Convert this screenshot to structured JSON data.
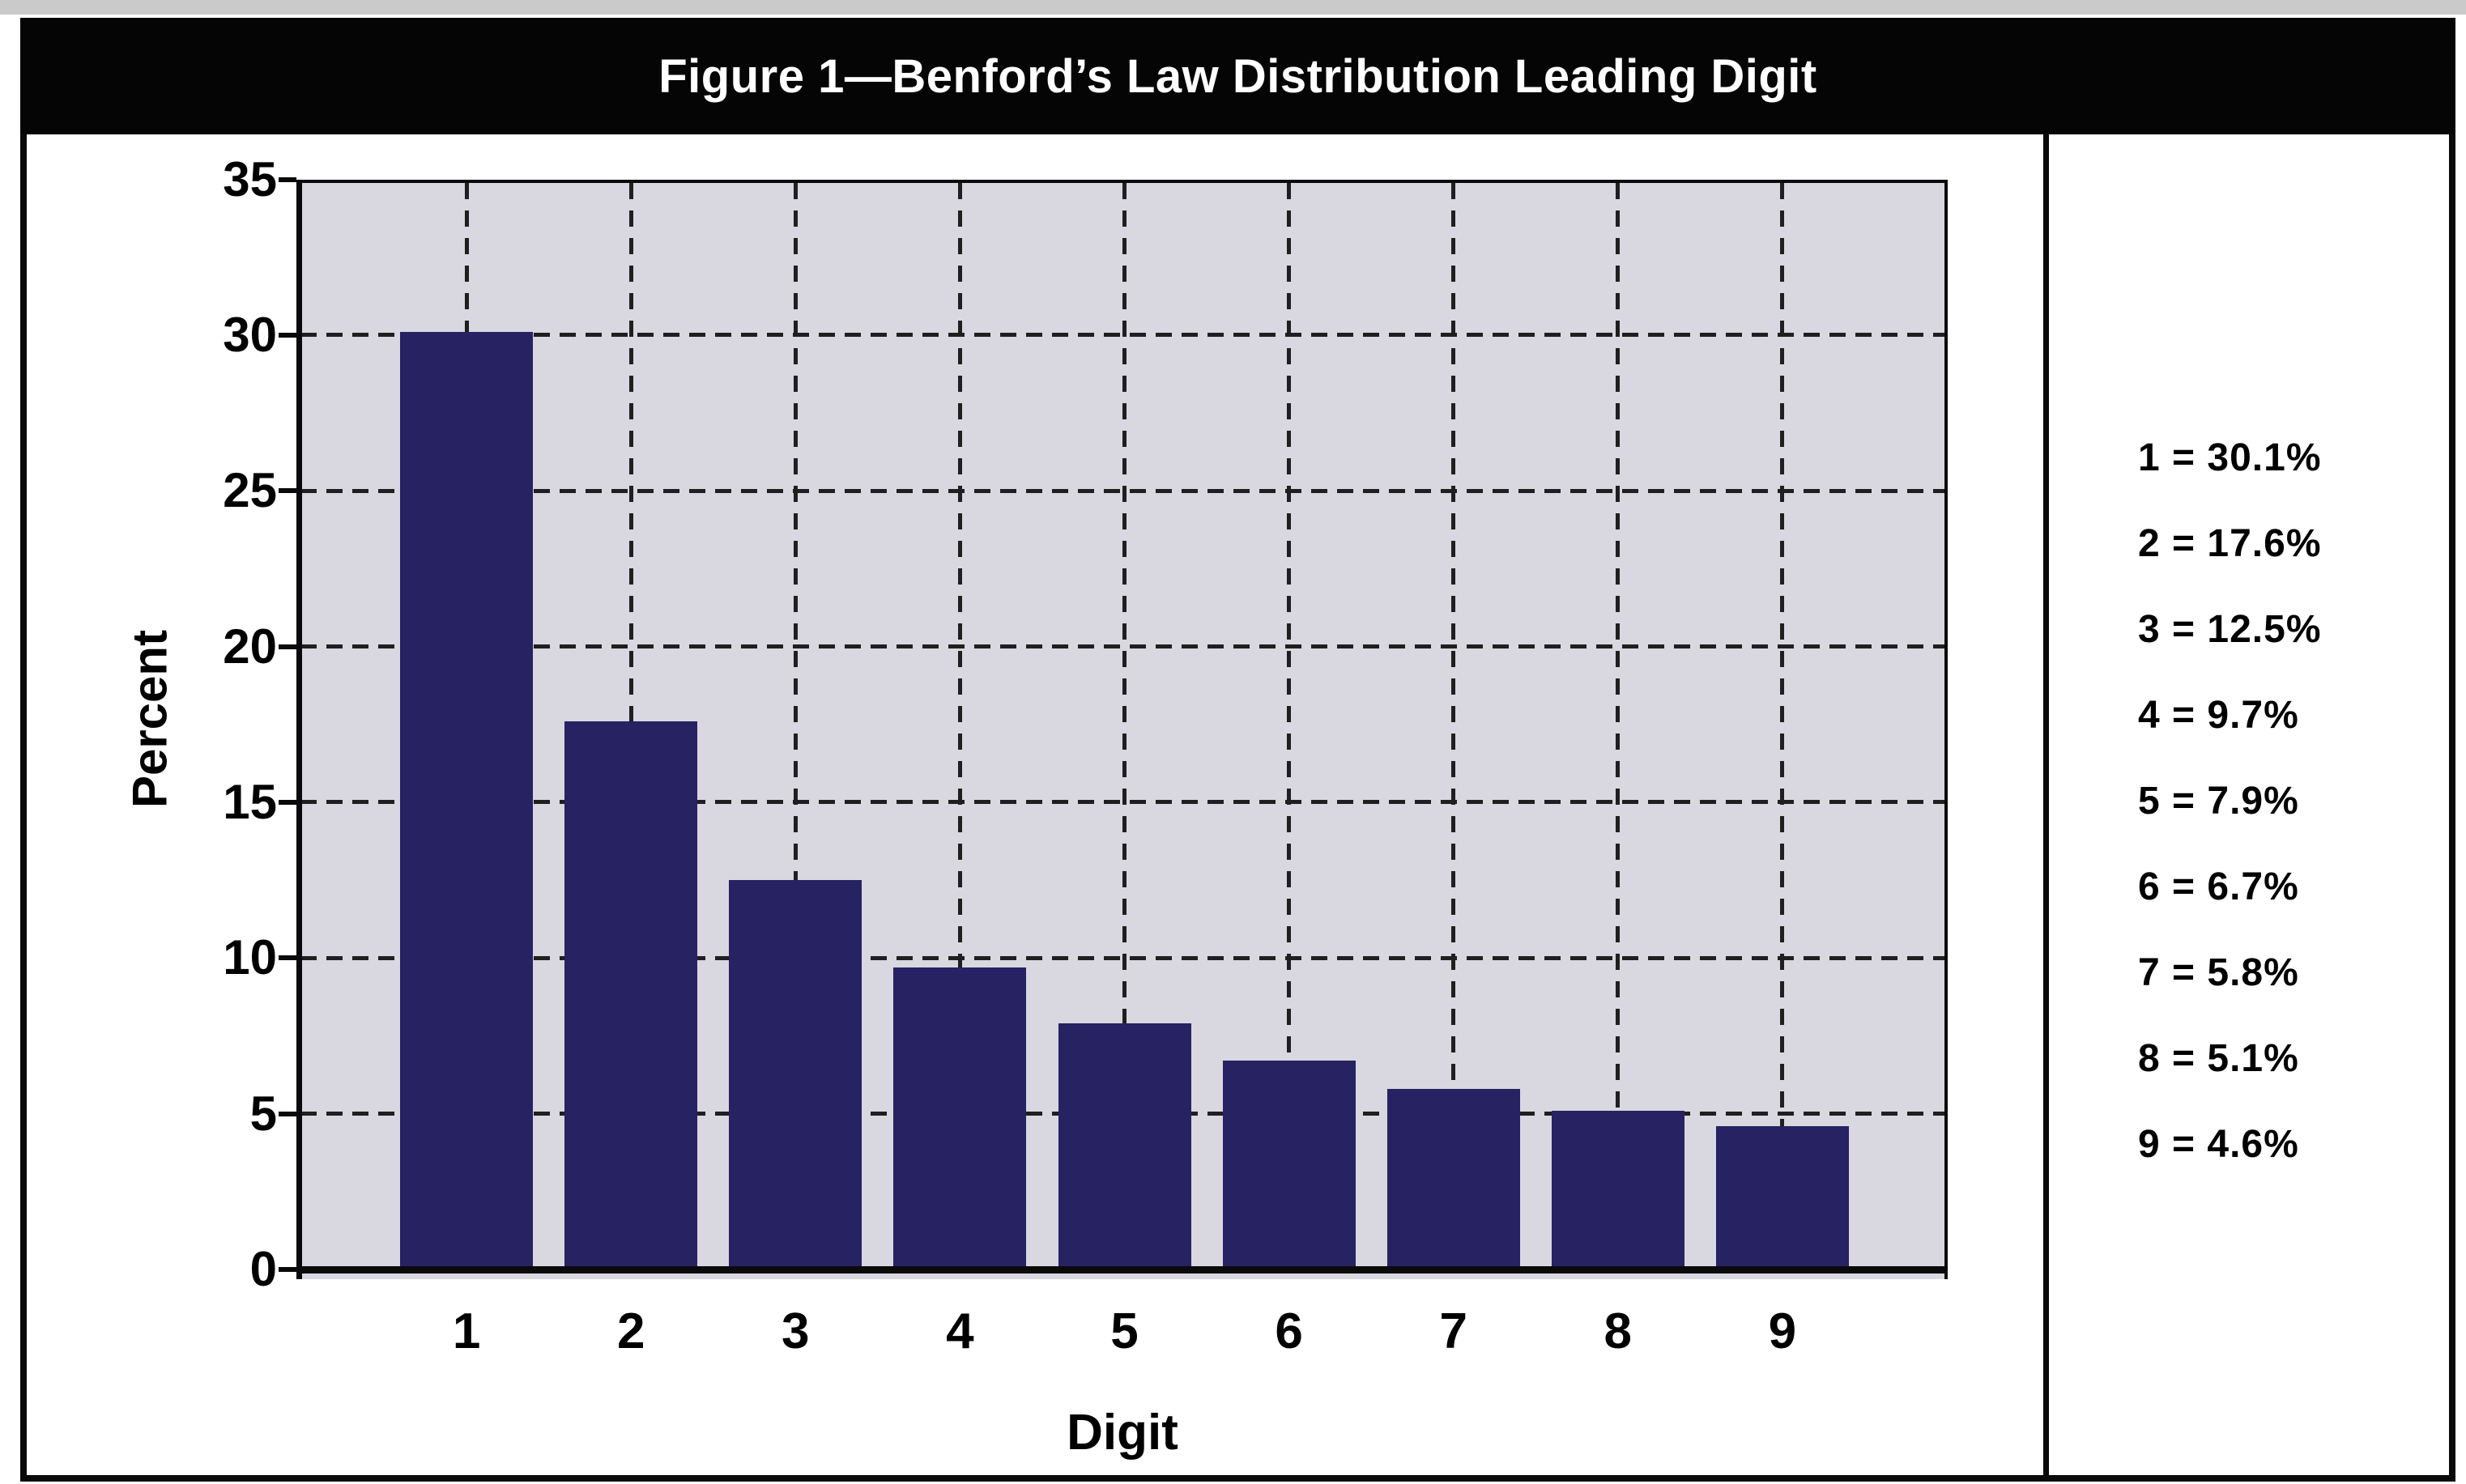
{
  "title": "Figure 1—Benford’s Law Distribution Leading Digit",
  "colors": {
    "title_bar_bg": "#050505",
    "title_text": "#ffffff",
    "frame_border": "#0a0a0a",
    "panel_bg": "#ffffff",
    "plot_bg": "#d9d7e0",
    "bar_fill": "#272262",
    "grid_line": "#1f1f1f",
    "axis_line": "#0a0a0a",
    "text": "#000000"
  },
  "chart_data": {
    "type": "bar",
    "title": "Figure 1—Benford’s Law Distribution Leading Digit",
    "categories": [
      "1",
      "2",
      "3",
      "4",
      "5",
      "6",
      "7",
      "8",
      "9"
    ],
    "values": [
      30.1,
      17.6,
      12.5,
      9.7,
      7.9,
      6.7,
      5.8,
      5.1,
      4.6
    ],
    "xlabel": "Digit",
    "ylabel": "Percent",
    "ylim": [
      0,
      35
    ],
    "yticks": [
      0,
      5,
      10,
      15,
      20,
      25,
      30,
      35
    ],
    "grid": {
      "horizontal": "dashed",
      "vertical": "dashed"
    },
    "legend_position": "right-panel"
  },
  "legend": {
    "items": [
      "1 = 30.1%",
      "2 = 17.6%",
      "3 = 12.5%",
      "4 = 9.7%",
      "5 = 7.9%",
      "6 = 6.7%",
      "7 = 5.8%",
      "8 = 5.1%",
      "9 = 4.6%"
    ]
  }
}
